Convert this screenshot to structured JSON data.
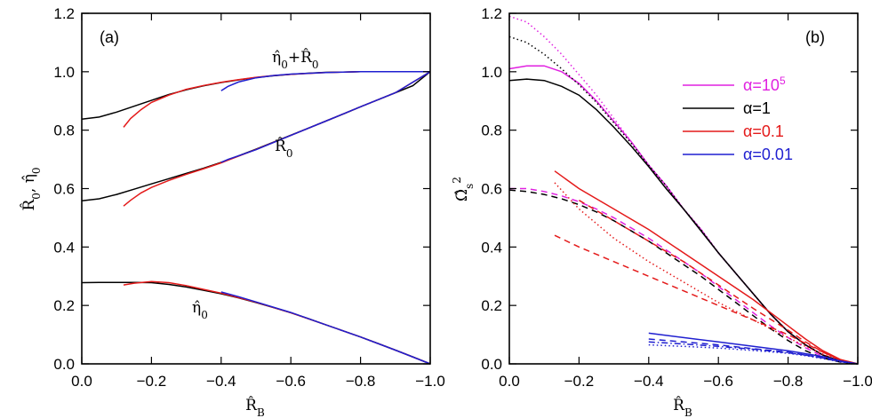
{
  "colors": {
    "magenta": "#e020e0",
    "black": "#000000",
    "red": "#e41a1a",
    "blue": "#1f1fd0"
  },
  "chart_data": [
    {
      "type": "line",
      "panel_label": "(a)",
      "xlabel": "R̂_B",
      "ylabel": "R̂₀, η̂₀",
      "xlim": [
        0.0,
        -1.0
      ],
      "ylim": [
        0.0,
        1.2
      ],
      "xticks": [
        "0.0",
        "−0.2",
        "−0.4",
        "−0.6",
        "−0.8",
        "−1.0"
      ],
      "yticks": [
        "0.0",
        "0.2",
        "0.4",
        "0.6",
        "0.8",
        "1.0",
        "1.2"
      ],
      "annotations": [
        {
          "text": "η̂₀+R̂₀",
          "x": -0.5,
          "y": 1.02
        },
        {
          "text": "R̂₀",
          "x": -0.53,
          "y": 0.74
        },
        {
          "text": "η̂₀",
          "x": -0.31,
          "y": 0.17
        }
      ],
      "series": [
        {
          "color": "black",
          "group": "sum",
          "style": "solid",
          "x": [
            0,
            -0.05,
            -0.1,
            -0.15,
            -0.2,
            -0.25,
            -0.3,
            -0.35,
            -0.4,
            -0.45,
            -0.5,
            -0.55,
            -0.6,
            -0.65,
            -0.7,
            -0.75,
            -0.8,
            -0.85,
            -0.9,
            -0.95,
            -1.0
          ],
          "y": [
            0.838,
            0.845,
            0.862,
            0.882,
            0.902,
            0.922,
            0.938,
            0.952,
            0.963,
            0.972,
            0.98,
            0.986,
            0.991,
            0.995,
            0.998,
            0.999,
            1.0,
            1.0,
            1.0,
            1.0,
            1.0
          ]
        },
        {
          "color": "red",
          "group": "sum",
          "style": "solid",
          "x": [
            -0.12,
            -0.14,
            -0.17,
            -0.2,
            -0.25,
            -0.3,
            -0.35,
            -0.4,
            -0.45,
            -0.5,
            -0.55,
            -0.6,
            -0.7,
            -0.8,
            -0.9,
            -1.0
          ],
          "y": [
            0.81,
            0.84,
            0.87,
            0.895,
            0.92,
            0.94,
            0.953,
            0.964,
            0.973,
            0.981,
            0.987,
            0.991,
            0.997,
            1.0,
            1.0,
            1.0
          ]
        },
        {
          "color": "blue",
          "group": "sum",
          "style": "solid",
          "x": [
            -0.4,
            -0.42,
            -0.45,
            -0.5,
            -0.55,
            -0.6,
            -0.7,
            -0.8,
            -0.9,
            -1.0
          ],
          "y": [
            0.935,
            0.95,
            0.965,
            0.979,
            0.987,
            0.992,
            0.997,
            1.0,
            1.0,
            1.0
          ]
        },
        {
          "color": "black",
          "group": "R0",
          "style": "solid",
          "x": [
            0,
            -0.05,
            -0.1,
            -0.15,
            -0.2,
            -0.25,
            -0.3,
            -0.35,
            -0.4,
            -0.45,
            -0.5,
            -0.55,
            -0.6,
            -0.65,
            -0.7,
            -0.75,
            -0.8,
            -0.85,
            -0.9,
            -0.95,
            -1.0
          ],
          "y": [
            0.558,
            0.565,
            0.58,
            0.598,
            0.616,
            0.634,
            0.652,
            0.67,
            0.69,
            0.712,
            0.735,
            0.759,
            0.783,
            0.807,
            0.831,
            0.855,
            0.88,
            0.904,
            0.928,
            0.952,
            1.0
          ]
        },
        {
          "color": "red",
          "group": "R0",
          "style": "solid",
          "x": [
            -0.12,
            -0.14,
            -0.17,
            -0.2,
            -0.25,
            -0.3,
            -0.35,
            -0.4,
            -0.5,
            -0.6,
            -0.7,
            -0.8,
            -0.9,
            -1.0
          ],
          "y": [
            0.54,
            0.56,
            0.585,
            0.604,
            0.628,
            0.649,
            0.668,
            0.688,
            0.734,
            0.782,
            0.831,
            0.88,
            0.928,
            1.0
          ]
        },
        {
          "color": "blue",
          "group": "R0",
          "style": "solid",
          "x": [
            -0.4,
            -0.42,
            -0.45,
            -0.5,
            -0.6,
            -0.7,
            -0.8,
            -0.9,
            -1.0
          ],
          "y": [
            0.69,
            0.7,
            0.712,
            0.733,
            0.782,
            0.831,
            0.88,
            0.928,
            1.0
          ]
        },
        {
          "color": "black",
          "group": "eta0",
          "style": "solid",
          "x": [
            0,
            -0.05,
            -0.1,
            -0.15,
            -0.2,
            -0.25,
            -0.3,
            -0.35,
            -0.4,
            -0.45,
            -0.5,
            -0.55,
            -0.6,
            -0.65,
            -0.7,
            -0.75,
            -0.8,
            -0.85,
            -0.9,
            -0.95,
            -1.0
          ],
          "y": [
            0.278,
            0.279,
            0.279,
            0.279,
            0.278,
            0.272,
            0.263,
            0.252,
            0.24,
            0.226,
            0.21,
            0.193,
            0.175,
            0.155,
            0.134,
            0.113,
            0.092,
            0.07,
            0.047,
            0.024,
            0.0
          ]
        },
        {
          "color": "red",
          "group": "eta0",
          "style": "solid",
          "x": [
            -0.12,
            -0.15,
            -0.2,
            -0.25,
            -0.3,
            -0.35,
            -0.4,
            -0.5,
            -0.6,
            -0.7,
            -0.8,
            -0.9,
            -1.0
          ],
          "y": [
            0.27,
            0.276,
            0.282,
            0.278,
            0.268,
            0.255,
            0.242,
            0.211,
            0.175,
            0.134,
            0.092,
            0.047,
            0.0
          ]
        },
        {
          "color": "blue",
          "group": "eta0",
          "style": "solid",
          "x": [
            -0.4,
            -0.45,
            -0.5,
            -0.6,
            -0.7,
            -0.8,
            -0.9,
            -1.0
          ],
          "y": [
            0.246,
            0.23,
            0.212,
            0.176,
            0.134,
            0.092,
            0.047,
            0.0
          ]
        }
      ]
    },
    {
      "type": "line",
      "panel_label": "(b)",
      "xlabel": "R̂_B",
      "ylabel": "Ω̂ₛ²",
      "xlim": [
        0.0,
        -1.0
      ],
      "ylim": [
        0.0,
        1.2
      ],
      "xticks": [
        "0.0",
        "−0.2",
        "−0.4",
        "−0.6",
        "−0.8",
        "−1.0"
      ],
      "yticks": [
        "0.0",
        "0.2",
        "0.4",
        "0.6",
        "0.8",
        "1.0",
        "1.2"
      ],
      "legend": {
        "placement": "top-right",
        "entries": [
          {
            "label_prefix": "α=10",
            "label_sup": "5",
            "color": "magenta"
          },
          {
            "label_prefix": "α=1",
            "label_sup": "",
            "color": "black"
          },
          {
            "label_prefix": "α=0.1",
            "label_sup": "",
            "color": "red"
          },
          {
            "label_prefix": "α=0.01",
            "label_sup": "",
            "color": "blue"
          }
        ]
      },
      "series": [
        {
          "color": "magenta",
          "style": "solid",
          "x": [
            0,
            -0.05,
            -0.1,
            -0.15,
            -0.2,
            -0.25,
            -0.3,
            -0.35,
            -0.4,
            -0.45,
            -0.5,
            -0.55,
            -0.6,
            -0.65,
            -0.7,
            -0.75,
            -0.8,
            -0.85,
            -0.9,
            -0.95,
            -1.0
          ],
          "y": [
            1.01,
            1.02,
            1.02,
            1.0,
            0.96,
            0.9,
            0.83,
            0.76,
            0.68,
            0.61,
            0.53,
            0.46,
            0.38,
            0.31,
            0.24,
            0.17,
            0.11,
            0.065,
            0.03,
            0.01,
            0.0
          ]
        },
        {
          "color": "magenta",
          "style": "dotted",
          "x": [
            0,
            -0.05,
            -0.1,
            -0.15,
            -0.2,
            -0.25,
            -0.3,
            -0.35,
            -0.4,
            -0.45,
            -0.5,
            -0.55,
            -0.6,
            -0.65,
            -0.7,
            -0.75,
            -0.8,
            -0.85,
            -0.9,
            -0.95,
            -1.0
          ],
          "y": [
            1.19,
            1.17,
            1.12,
            1.06,
            0.99,
            0.92,
            0.84,
            0.76,
            0.68,
            0.61,
            0.53,
            0.46,
            0.38,
            0.31,
            0.24,
            0.17,
            0.11,
            0.065,
            0.03,
            0.01,
            0.0
          ]
        },
        {
          "color": "magenta",
          "style": "dashed",
          "x": [
            0,
            -0.05,
            -0.1,
            -0.15,
            -0.2,
            -0.25,
            -0.3,
            -0.35,
            -0.4,
            -0.45,
            -0.5,
            -0.55,
            -0.6,
            -0.65,
            -0.7,
            -0.75,
            -0.8,
            -0.85,
            -0.9,
            -0.95,
            -1.0
          ],
          "y": [
            0.6,
            0.6,
            0.59,
            0.575,
            0.555,
            0.53,
            0.5,
            0.465,
            0.43,
            0.39,
            0.35,
            0.31,
            0.265,
            0.22,
            0.175,
            0.13,
            0.09,
            0.055,
            0.025,
            0.008,
            0.0
          ]
        },
        {
          "color": "black",
          "style": "solid",
          "x": [
            0,
            -0.05,
            -0.1,
            -0.15,
            -0.2,
            -0.25,
            -0.3,
            -0.35,
            -0.4,
            -0.45,
            -0.5,
            -0.55,
            -0.6,
            -0.65,
            -0.7,
            -0.75,
            -0.8,
            -0.85,
            -0.9,
            -0.95,
            -1.0
          ],
          "y": [
            0.97,
            0.975,
            0.97,
            0.95,
            0.92,
            0.87,
            0.81,
            0.745,
            0.675,
            0.6,
            0.53,
            0.455,
            0.38,
            0.31,
            0.24,
            0.17,
            0.11,
            0.065,
            0.03,
            0.01,
            0.0
          ]
        },
        {
          "color": "black",
          "style": "dotted",
          "x": [
            0,
            -0.05,
            -0.1,
            -0.15,
            -0.2,
            -0.25,
            -0.3,
            -0.35,
            -0.4,
            -0.45,
            -0.5,
            -0.55,
            -0.6,
            -0.65,
            -0.7,
            -0.75,
            -0.8,
            -0.85,
            -0.9,
            -0.95,
            -1.0
          ],
          "y": [
            1.12,
            1.1,
            1.06,
            1.01,
            0.955,
            0.895,
            0.825,
            0.755,
            0.68,
            0.61,
            0.53,
            0.46,
            0.38,
            0.31,
            0.24,
            0.17,
            0.11,
            0.065,
            0.03,
            0.01,
            0.0
          ]
        },
        {
          "color": "black",
          "style": "dashed",
          "x": [
            0,
            -0.05,
            -0.1,
            -0.15,
            -0.2,
            -0.25,
            -0.3,
            -0.35,
            -0.4,
            -0.45,
            -0.5,
            -0.55,
            -0.6,
            -0.65,
            -0.7,
            -0.75,
            -0.8,
            -0.85,
            -0.9,
            -0.95,
            -1.0
          ],
          "y": [
            0.595,
            0.59,
            0.58,
            0.565,
            0.545,
            0.52,
            0.49,
            0.455,
            0.42,
            0.38,
            0.34,
            0.3,
            0.255,
            0.21,
            0.165,
            0.12,
            0.08,
            0.045,
            0.02,
            0.006,
            0.0
          ]
        },
        {
          "color": "red",
          "style": "solid",
          "x": [
            -0.13,
            -0.2,
            -0.3,
            -0.4,
            -0.5,
            -0.6,
            -0.7,
            -0.8,
            -0.85,
            -0.9,
            -0.95,
            -1.0
          ],
          "y": [
            0.66,
            0.6,
            0.53,
            0.46,
            0.38,
            0.3,
            0.22,
            0.13,
            0.085,
            0.045,
            0.015,
            0.0
          ]
        },
        {
          "color": "red",
          "style": "dotted",
          "x": [
            -0.13,
            -0.2,
            -0.3,
            -0.4,
            -0.5,
            -0.6,
            -0.7,
            -0.8,
            -0.85,
            -0.9,
            -0.95,
            -1.0
          ],
          "y": [
            0.62,
            0.53,
            0.43,
            0.35,
            0.28,
            0.21,
            0.15,
            0.09,
            0.06,
            0.033,
            0.012,
            0.0
          ]
        },
        {
          "color": "red",
          "style": "dashed",
          "x": [
            -0.13,
            -0.2,
            -0.3,
            -0.4,
            -0.5,
            -0.6,
            -0.7,
            -0.8,
            -0.85,
            -0.9,
            -0.95,
            -1.0
          ],
          "y": [
            0.44,
            0.4,
            0.35,
            0.3,
            0.25,
            0.2,
            0.15,
            0.1,
            0.07,
            0.04,
            0.014,
            0.0
          ]
        },
        {
          "color": "red",
          "style": "dashed",
          "x": [
            -0.2,
            -0.3,
            -0.4,
            -0.5,
            -0.6,
            -0.7,
            -0.8,
            -0.85,
            -0.9,
            -0.95,
            -1.0
          ],
          "y": [
            0.56,
            0.49,
            0.42,
            0.35,
            0.27,
            0.19,
            0.115,
            0.075,
            0.04,
            0.013,
            0.0
          ]
        },
        {
          "color": "blue",
          "style": "solid",
          "x": [
            -0.4,
            -0.5,
            -0.6,
            -0.7,
            -0.8,
            -0.85,
            -0.9,
            -0.95,
            -1.0
          ],
          "y": [
            0.105,
            0.09,
            0.075,
            0.06,
            0.045,
            0.035,
            0.025,
            0.01,
            0.0
          ]
        },
        {
          "color": "blue",
          "style": "dashed",
          "x": [
            -0.4,
            -0.5,
            -0.6,
            -0.7,
            -0.8,
            -0.85,
            -0.9,
            -0.95,
            -1.0
          ],
          "y": [
            0.085,
            0.075,
            0.065,
            0.052,
            0.04,
            0.03,
            0.02,
            0.008,
            0.0
          ]
        },
        {
          "color": "blue",
          "style": "dashdot",
          "x": [
            -0.4,
            -0.5,
            -0.6,
            -0.7,
            -0.8,
            -0.85,
            -0.9,
            -0.95,
            -1.0
          ],
          "y": [
            0.075,
            0.068,
            0.06,
            0.05,
            0.038,
            0.03,
            0.02,
            0.008,
            0.0
          ]
        },
        {
          "color": "blue",
          "style": "dotted",
          "x": [
            -0.4,
            -0.5,
            -0.6,
            -0.7,
            -0.8,
            -0.85,
            -0.9,
            -0.95,
            -1.0
          ],
          "y": [
            0.065,
            0.06,
            0.054,
            0.046,
            0.036,
            0.028,
            0.018,
            0.007,
            0.0
          ]
        }
      ]
    }
  ]
}
